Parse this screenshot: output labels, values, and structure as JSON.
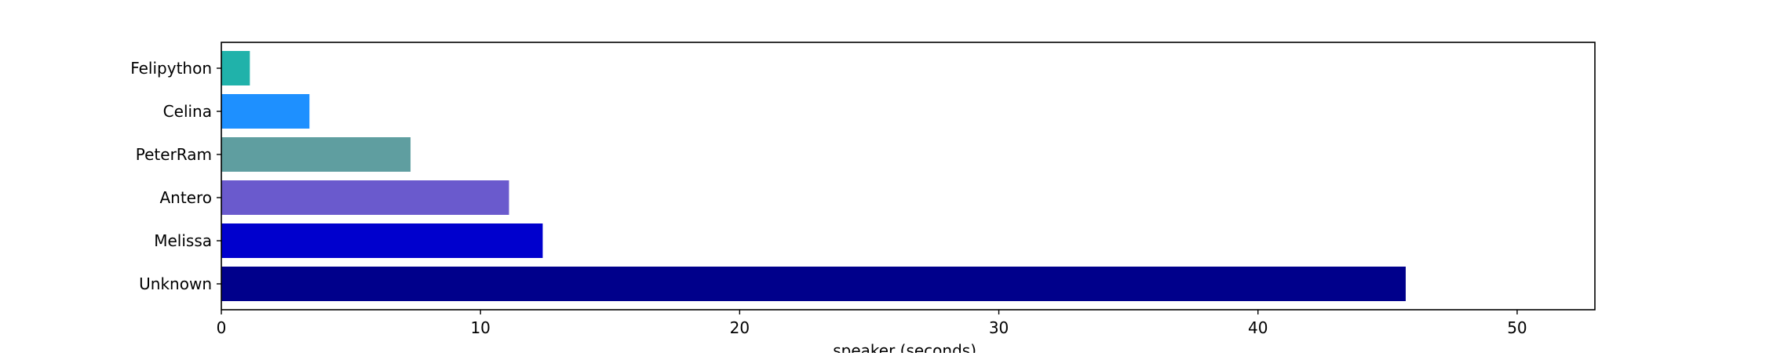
{
  "chart_data": {
    "type": "bar",
    "orientation": "horizontal",
    "title": "",
    "xlabel": "speaker (seconds)",
    "ylabel": "",
    "categories": [
      "Unknown",
      "Melissa",
      "Antero",
      "PeterRam",
      "Celina",
      "Felipython"
    ],
    "values": [
      45.7,
      12.4,
      11.1,
      7.3,
      3.4,
      1.1
    ],
    "colors": [
      "#00008b",
      "#0000cd",
      "#6a5acd",
      "#5f9ea0",
      "#1e90ff",
      "#20b2aa"
    ],
    "xlim": [
      0,
      53
    ],
    "xticks": [
      0,
      10,
      20,
      30,
      40,
      50
    ],
    "grid": false,
    "legend": "none"
  }
}
